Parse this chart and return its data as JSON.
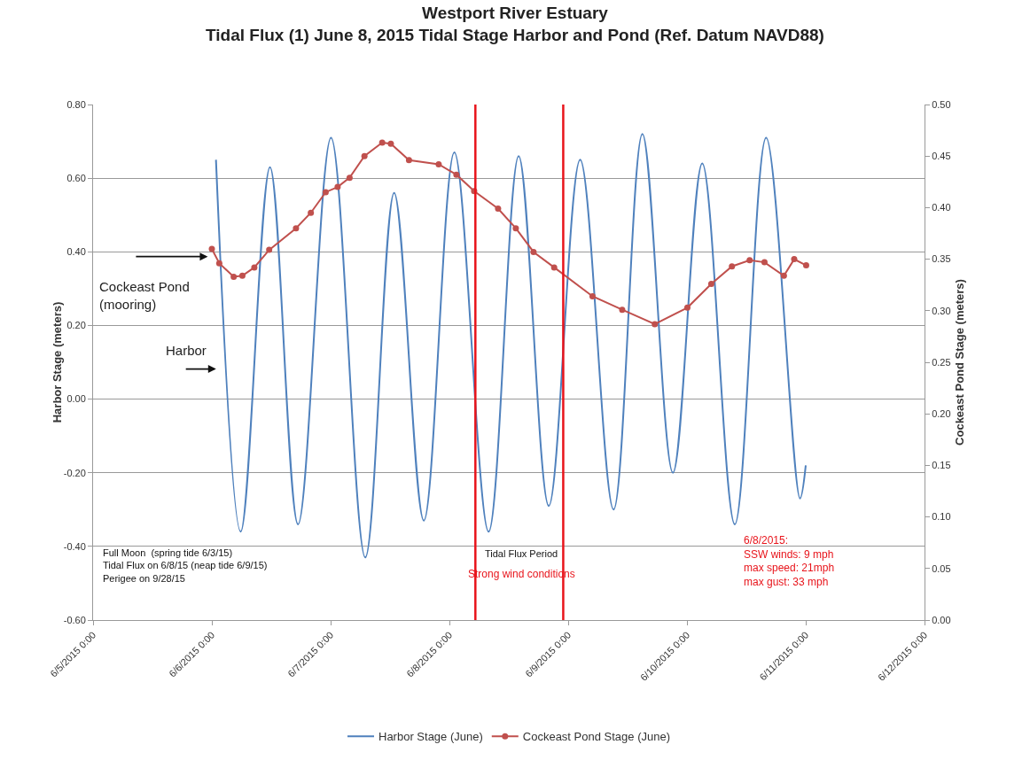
{
  "chart_data": {
    "type": "line",
    "title": "Westport River Estuary\nTidal Flux (1) June 8, 2015 Tidal Stage Harbor and Pond (Ref. Datum NAVD88)",
    "ylabel": "Harbor Stage (meters)",
    "y2label": "Cockeast Pond Stage (meters)",
    "xlim": [
      "2015-06-05T00:00",
      "2015-06-12T00:00"
    ],
    "xticks": [
      {
        "value": "2015-06-05T00:00",
        "label": "6/5/2015 0:00"
      },
      {
        "value": "2015-06-06T00:00",
        "label": "6/6/2015 0:00"
      },
      {
        "value": "2015-06-07T00:00",
        "label": "6/7/2015 0:00"
      },
      {
        "value": "2015-06-08T00:00",
        "label": "6/8/2015 0:00"
      },
      {
        "value": "2015-06-09T00:00",
        "label": "6/9/2015 0:00"
      },
      {
        "value": "2015-06-10T00:00",
        "label": "6/10/2015 0:00"
      },
      {
        "value": "2015-06-11T00:00",
        "label": "6/11/2015 0:00"
      },
      {
        "value": "2015-06-12T00:00",
        "label": "6/12/2015 0:00"
      }
    ],
    "ylim": [
      -0.6,
      0.8
    ],
    "yticks": [
      {
        "value": -0.6,
        "label": "-0.60"
      },
      {
        "value": -0.4,
        "label": "-0.40"
      },
      {
        "value": -0.2,
        "label": "-0.20"
      },
      {
        "value": 0,
        "label": "0.00"
      },
      {
        "value": 0.2,
        "label": "0.20"
      },
      {
        "value": 0.4,
        "label": "0.40"
      },
      {
        "value": 0.6,
        "label": "0.60"
      },
      {
        "value": 0.8,
        "label": "0.80"
      }
    ],
    "y2lim": [
      0,
      0.5
    ],
    "y2ticks": [
      {
        "value": 0,
        "label": "0.00"
      },
      {
        "value": 0.05,
        "label": "0.05"
      },
      {
        "value": 0.1,
        "label": "0.10"
      },
      {
        "value": 0.15,
        "label": "0.15"
      },
      {
        "value": 0.2,
        "label": "0.20"
      },
      {
        "value": 0.25,
        "label": "0.25"
      },
      {
        "value": 0.3,
        "label": "0.30"
      },
      {
        "value": 0.35,
        "label": "0.35"
      },
      {
        "value": 0.4,
        "label": "0.40"
      },
      {
        "value": 0.45,
        "label": "0.45"
      },
      {
        "value": 0.5,
        "label": "0.50"
      }
    ],
    "grid": "y",
    "legend": "bottom",
    "line_style": "solid",
    "series": [
      {
        "name": "Harbor Stage (June)",
        "color": "#4f81bd",
        "marker": "none",
        "x": [
          "2015-06-06T00:50",
          "2015-06-06T05:50",
          "2015-06-06T11:45",
          "2015-06-06T17:25",
          "2015-06-07T00:05",
          "2015-06-07T07:00",
          "2015-06-07T12:50",
          "2015-06-07T18:50",
          "2015-06-08T01:00",
          "2015-06-08T07:55",
          "2015-06-08T14:00",
          "2015-06-08T20:05",
          "2015-06-09T02:25",
          "2015-06-09T09:10",
          "2015-06-09T15:00",
          "2015-06-09T21:10",
          "2015-06-10T03:05",
          "2015-06-10T09:40",
          "2015-06-10T16:00",
          "2015-06-10T22:50",
          "2015-06-11T00:00"
        ],
        "values": [
          0.65,
          -0.36,
          0.63,
          -0.34,
          0.71,
          -0.43,
          0.56,
          -0.33,
          0.67,
          -0.36,
          0.66,
          -0.29,
          0.65,
          -0.3,
          0.72,
          -0.2,
          0.64,
          -0.34,
          0.71,
          -0.27,
          -0.18
        ]
      },
      {
        "name": "Cockeast Pond Stage (June)",
        "color": "#c0504d",
        "marker": "circle",
        "axis": "y2",
        "x": [
          "2015-06-06T00:00",
          "2015-06-06T01:30",
          "2015-06-06T04:25",
          "2015-06-06T06:10",
          "2015-06-06T08:35",
          "2015-06-06T11:35",
          "2015-06-06T17:00",
          "2015-06-06T20:00",
          "2015-06-06T23:00",
          "2015-06-07T01:25",
          "2015-06-07T03:50",
          "2015-06-07T06:50",
          "2015-06-07T10:25",
          "2015-06-07T12:10",
          "2015-06-07T15:50",
          "2015-06-07T21:50",
          "2015-06-08T01:25",
          "2015-06-08T05:00",
          "2015-06-08T09:50",
          "2015-06-08T13:25",
          "2015-06-08T17:00",
          "2015-06-08T21:10",
          "2015-06-09T04:55",
          "2015-06-09T10:55",
          "2015-06-09T17:30",
          "2015-06-10T00:05",
          "2015-06-10T04:55",
          "2015-06-10T09:05",
          "2015-06-10T12:40",
          "2015-06-10T15:40",
          "2015-06-10T19:35",
          "2015-06-10T21:40",
          "2015-06-11T00:05"
        ],
        "values": [
          0.36,
          0.346,
          0.333,
          0.334,
          0.342,
          0.359,
          0.38,
          0.395,
          0.415,
          0.42,
          0.429,
          0.45,
          0.463,
          0.462,
          0.446,
          0.442,
          0.432,
          0.416,
          0.399,
          0.38,
          0.357,
          0.342,
          0.314,
          0.301,
          0.287,
          0.303,
          0.326,
          0.343,
          0.349,
          0.347,
          0.334,
          0.35,
          0.344
        ]
      }
    ],
    "ref_lines": [
      {
        "axis": "x",
        "value": "2015-06-08T05:15",
        "color": "#e8141b"
      },
      {
        "axis": "x",
        "value": "2015-06-08T23:00",
        "color": "#e8141b"
      }
    ],
    "annotations": [
      "Cockeast Pond\n(mooring)",
      "Harbor",
      "Full Moon  (spring tide 6/3/15)\nTidal Flux on 6/8/15 (neap tide 6/9/15)\nPerigee on 9/28/15",
      "Tidal Flux Period",
      "Strong wind conditions",
      "6/8/2015:\nSSW winds: 9 mph\nmax speed: 21mph\nmax gust: 33 mph"
    ]
  }
}
